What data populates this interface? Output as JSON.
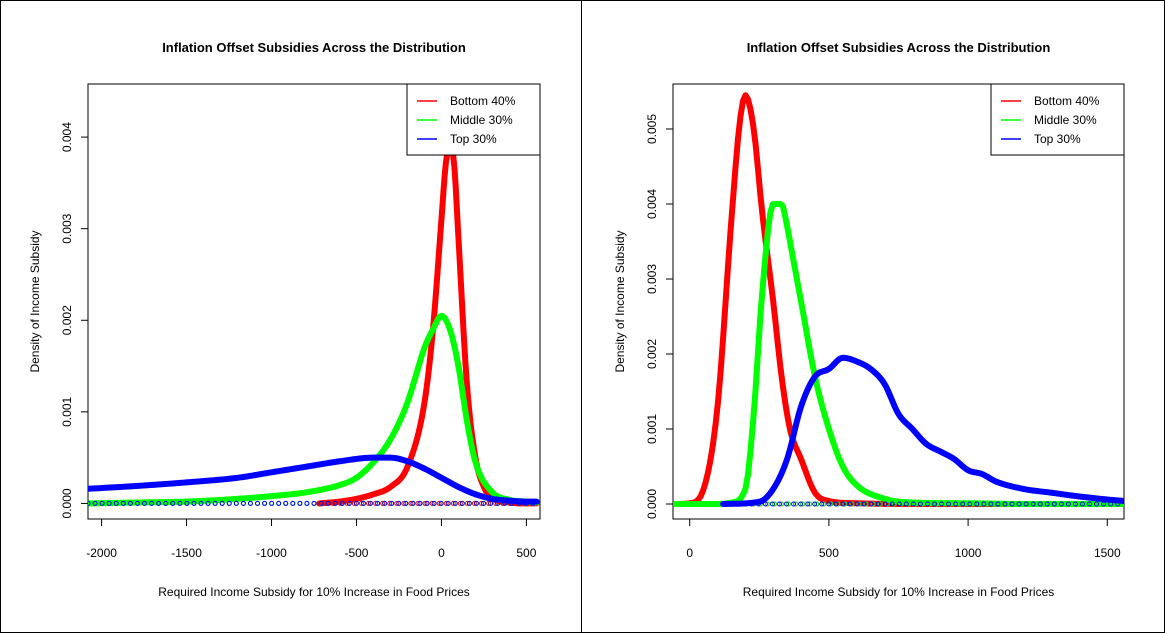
{
  "chart_data": [
    {
      "type": "line",
      "title": "Inflation Offset Subsidies Across the Distribution",
      "xlabel": "Required Income Subsidy for 10% Increase in Food Prices",
      "ylabel": "Density of Income Subsidy",
      "xlim": [
        -2080,
        580
      ],
      "ylim": [
        -0.00017,
        0.00458
      ],
      "xticks": [
        -2000,
        -1500,
        -1000,
        -500,
        0,
        500
      ],
      "xtick_labels": [
        "-2000",
        "-1500",
        "-1000",
        "-500",
        "0",
        "500"
      ],
      "yticks": [
        0,
        0.001,
        0.002,
        0.003,
        0.004
      ],
      "ytick_labels": [
        "0.000",
        "0.001",
        "0.002",
        "0.003",
        "0.004"
      ],
      "grid": false,
      "legend_position": "top-right",
      "series": [
        {
          "name": "Bottom 40%",
          "color": "#ff0000",
          "x": [
            -720,
            -600,
            -500,
            -400,
            -300,
            -200,
            -100,
            -50,
            0,
            25,
            50,
            75,
            100,
            150,
            200,
            250,
            300,
            400,
            500,
            560
          ],
          "y": [
            0,
            2e-05,
            5e-05,
            0.0001,
            0.00018,
            0.0004,
            0.0011,
            0.0019,
            0.0031,
            0.0037,
            0.0039,
            0.0037,
            0.0029,
            0.0013,
            0.0005,
            0.00018,
            6e-05,
            1e-05,
            0,
            0
          ]
        },
        {
          "name": "Middle 30%",
          "color": "#00ff00",
          "x": [
            -2080,
            -1800,
            -1500,
            -1200,
            -1000,
            -800,
            -600,
            -500,
            -400,
            -300,
            -200,
            -150,
            -100,
            -50,
            0,
            50,
            100,
            150,
            200,
            300,
            400,
            500,
            560
          ],
          "y": [
            0,
            1e-05,
            2e-05,
            5e-05,
            8e-05,
            0.00012,
            0.0002,
            0.00028,
            0.00045,
            0.0007,
            0.0011,
            0.0014,
            0.0017,
            0.0019,
            0.00205,
            0.0019,
            0.0015,
            0.0009,
            0.00045,
            0.00012,
            4e-05,
            2e-05,
            1e-05
          ]
        },
        {
          "name": "Top 30%",
          "color": "#0000ff",
          "x": [
            -2080,
            -1800,
            -1500,
            -1200,
            -1000,
            -800,
            -600,
            -400,
            -300,
            -200,
            -100,
            0,
            100,
            200,
            300,
            400,
            500,
            560
          ],
          "y": [
            0.00016,
            0.00019,
            0.00023,
            0.00028,
            0.00034,
            0.0004,
            0.00046,
            0.0005,
            0.0005,
            0.00046,
            0.00038,
            0.00028,
            0.00018,
            0.0001,
            5e-05,
            3e-05,
            2e-05,
            2e-05
          ]
        }
      ]
    },
    {
      "type": "line",
      "title": "Inflation Offset Subsidies Across the Distribution",
      "xlabel": "Required Income Subsidy for 10% Increase in Food Prices",
      "ylabel": "Density of Income Subsidy",
      "xlim": [
        -60,
        1560
      ],
      "ylim": [
        -0.0002,
        0.0056
      ],
      "xticks": [
        0,
        500,
        1000,
        1500
      ],
      "xtick_labels": [
        "0",
        "500",
        "1000",
        "1500"
      ],
      "yticks": [
        0,
        0.001,
        0.002,
        0.003,
        0.004,
        0.005
      ],
      "ytick_labels": [
        "0.000",
        "0.001",
        "0.002",
        "0.003",
        "0.004",
        "0.005"
      ],
      "grid": false,
      "legend_position": "top-right",
      "series": [
        {
          "name": "Bottom 40%",
          "color": "#ff0000",
          "x": [
            -50,
            0,
            50,
            100,
            150,
            180,
            200,
            230,
            260,
            300,
            330,
            360,
            400,
            450,
            500,
            600,
            800,
            1000,
            1200,
            1400,
            1560
          ],
          "y": [
            0,
            1e-05,
            0.0002,
            0.0013,
            0.0038,
            0.0051,
            0.00545,
            0.005,
            0.0039,
            0.0027,
            0.0017,
            0.001,
            0.0006,
            0.00015,
            4e-05,
            1e-05,
            0,
            0,
            0,
            0,
            0
          ]
        },
        {
          "name": "Middle 30%",
          "color": "#00ff00",
          "x": [
            -50,
            100,
            150,
            200,
            230,
            260,
            300,
            330,
            350,
            370,
            400,
            450,
            500,
            550,
            600,
            700,
            800,
            1000,
            1200,
            1400,
            1560
          ],
          "y": [
            0,
            0,
            2e-05,
            0.0002,
            0.0012,
            0.0028,
            0.004,
            0.004,
            0.0037,
            0.0033,
            0.0027,
            0.0017,
            0.001,
            0.0005,
            0.00025,
            7e-05,
            2e-05,
            1e-05,
            0,
            0,
            0
          ]
        },
        {
          "name": "Top 30%",
          "color": "#0000ff",
          "x": [
            120,
            250,
            300,
            350,
            400,
            450,
            500,
            550,
            600,
            650,
            700,
            750,
            800,
            850,
            900,
            950,
            1000,
            1050,
            1100,
            1200,
            1300,
            1400,
            1500,
            1560
          ],
          "y": [
            0,
            3e-05,
            0.0002,
            0.0006,
            0.0013,
            0.0017,
            0.0018,
            0.00195,
            0.0019,
            0.0018,
            0.0016,
            0.0012,
            0.001,
            0.0008,
            0.0007,
            0.0006,
            0.00045,
            0.0004,
            0.0003,
            0.0002,
            0.00015,
            0.0001,
            6e-05,
            4e-05
          ]
        }
      ]
    }
  ]
}
